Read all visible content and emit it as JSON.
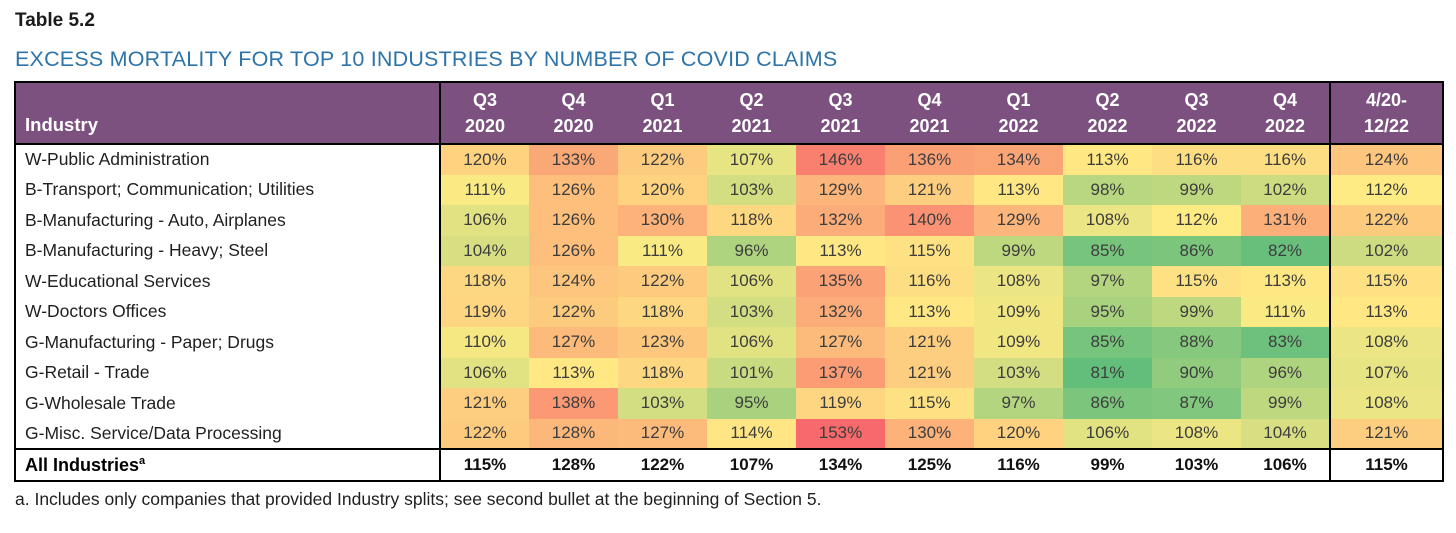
{
  "page": {
    "table_label": "Table 5.2",
    "title": "EXCESS MORTALITY FOR TOP 10 INDUSTRIES BY NUMBER OF COVID CLAIMS",
    "footnote": "a. Includes only companies that provided Industry splits; see second bullet at the beginning of Section 5."
  },
  "colors": {
    "title_blue": "#2E74A9",
    "header_purple": "#7C5180",
    "header_text": "#FFFFFF",
    "border_black": "#000000"
  },
  "chart_data": {
    "type": "heatmap",
    "title": "EXCESS MORTALITY FOR TOP 10 INDUSTRIES BY NUMBER OF COVID CLAIMS",
    "row_header": "Industry",
    "value_suffix": "%",
    "columns": [
      {
        "line1": "Q3",
        "line2": "2020"
      },
      {
        "line1": "Q4",
        "line2": "2020"
      },
      {
        "line1": "Q1",
        "line2": "2021"
      },
      {
        "line1": "Q2",
        "line2": "2021"
      },
      {
        "line1": "Q3",
        "line2": "2021"
      },
      {
        "line1": "Q4",
        "line2": "2021"
      },
      {
        "line1": "Q1",
        "line2": "2022"
      },
      {
        "line1": "Q2",
        "line2": "2022"
      },
      {
        "line1": "Q3",
        "line2": "2022"
      },
      {
        "line1": "Q4",
        "line2": "2022"
      },
      {
        "line1": "4/20-",
        "line2": "12/22"
      }
    ],
    "rows": [
      {
        "label": "W-Public Administration",
        "values": [
          120,
          133,
          122,
          107,
          146,
          136,
          134,
          113,
          116,
          116,
          124
        ]
      },
      {
        "label": "B-Transport; Communication; Utilities",
        "values": [
          111,
          126,
          120,
          103,
          129,
          121,
          113,
          98,
          99,
          102,
          112
        ]
      },
      {
        "label": "B-Manufacturing - Auto, Airplanes",
        "values": [
          106,
          126,
          130,
          118,
          132,
          140,
          129,
          108,
          112,
          131,
          122
        ]
      },
      {
        "label": "B-Manufacturing - Heavy; Steel",
        "values": [
          104,
          126,
          111,
          96,
          113,
          115,
          99,
          85,
          86,
          82,
          102
        ]
      },
      {
        "label": "W-Educational Services",
        "values": [
          118,
          124,
          122,
          106,
          135,
          116,
          108,
          97,
          115,
          113,
          115
        ]
      },
      {
        "label": "W-Doctors Offices",
        "values": [
          119,
          122,
          118,
          103,
          132,
          113,
          109,
          95,
          99,
          111,
          113
        ]
      },
      {
        "label": "G-Manufacturing - Paper; Drugs",
        "values": [
          110,
          127,
          123,
          106,
          127,
          121,
          109,
          85,
          88,
          83,
          108
        ]
      },
      {
        "label": "G-Retail - Trade",
        "values": [
          106,
          113,
          118,
          101,
          137,
          121,
          103,
          81,
          90,
          96,
          107
        ]
      },
      {
        "label": "G-Wholesale Trade",
        "values": [
          121,
          138,
          103,
          95,
          119,
          115,
          97,
          86,
          87,
          99,
          108
        ]
      },
      {
        "label": "G-Misc. Service/Data Processing",
        "values": [
          122,
          128,
          127,
          114,
          153,
          130,
          120,
          106,
          108,
          104,
          121
        ]
      }
    ],
    "summary_row": {
      "label": "All Industries",
      "superscript": "a",
      "values": [
        115,
        128,
        122,
        107,
        134,
        125,
        116,
        99,
        103,
        106,
        115
      ]
    },
    "color_scale": {
      "min": 81,
      "mid": 112,
      "max": 153,
      "min_color": "#63BE7B",
      "mid_color": "#FFEB84",
      "max_color": "#F8696B"
    },
    "layout": {
      "industry_col_width": 425,
      "quarter_col_width": 89,
      "summary_col_width": 113
    }
  }
}
